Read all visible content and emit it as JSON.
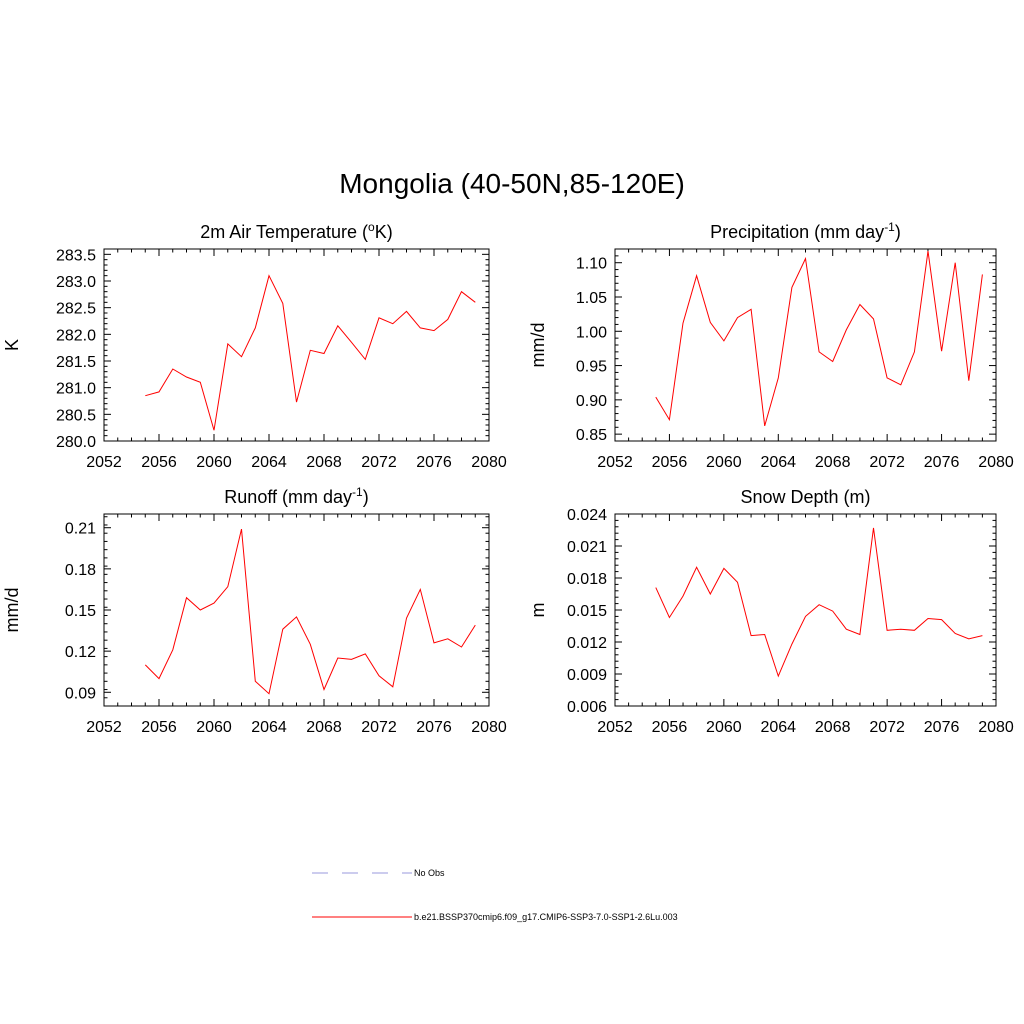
{
  "title": "Mongolia (40-50N,85-120E)",
  "legend": [
    {
      "label": "No Obs",
      "style": "dashed",
      "color": "#9999dd"
    },
    {
      "label": "b.e21.BSSP370cmip6.f09_g17.CMIP6-SSP3-7.0-SSP1-2.6Lu.003",
      "style": "solid",
      "color": "#ff0000"
    }
  ],
  "chart_data": [
    {
      "type": "line",
      "title": "2m Air Temperature (",
      "title_sup": "o",
      "title_after": "K)",
      "ylabel": "K",
      "xlim": [
        2052,
        2080
      ],
      "xticks": [
        2052,
        2056,
        2060,
        2064,
        2068,
        2072,
        2076,
        2080
      ],
      "xtick_labels": [
        "2052",
        "2056",
        "2060",
        "2064",
        "2068",
        "2072",
        "2076",
        "2080"
      ],
      "ylim": [
        280.0,
        283.6
      ],
      "yticks": [
        280.0,
        280.5,
        281.0,
        281.5,
        282.0,
        282.5,
        283.0,
        283.5
      ],
      "ytick_labels": [
        "280.0",
        "280.5",
        "281.0",
        "281.5",
        "282.0",
        "282.5",
        "283.0",
        "283.5"
      ],
      "color": "#ff0000",
      "x": [
        2055,
        2056,
        2057,
        2058,
        2059,
        2060,
        2061,
        2062,
        2063,
        2064,
        2065,
        2066,
        2067,
        2068,
        2069,
        2070,
        2071,
        2072,
        2073,
        2074,
        2075,
        2076,
        2077,
        2078,
        2079
      ],
      "y": [
        280.85,
        280.92,
        281.35,
        281.2,
        281.1,
        280.2,
        281.82,
        281.58,
        282.12,
        283.1,
        282.58,
        280.73,
        281.7,
        281.64,
        282.16,
        281.85,
        281.53,
        282.31,
        282.2,
        282.43,
        282.12,
        282.07,
        282.28,
        282.8,
        282.6
      ]
    },
    {
      "type": "line",
      "title": "Precipitation (mm day",
      "title_sup": "-1",
      "title_after": ")",
      "ylabel": "mm/d",
      "xlim": [
        2052,
        2080
      ],
      "xticks": [
        2052,
        2056,
        2060,
        2064,
        2068,
        2072,
        2076,
        2080
      ],
      "xtick_labels": [
        "2052",
        "2056",
        "2060",
        "2064",
        "2068",
        "2072",
        "2076",
        "2080"
      ],
      "ylim": [
        0.84,
        1.12
      ],
      "yticks": [
        0.85,
        0.9,
        0.95,
        1.0,
        1.05,
        1.1
      ],
      "ytick_labels": [
        "0.85",
        "0.90",
        "0.95",
        "1.00",
        "1.05",
        "1.10"
      ],
      "color": "#ff0000",
      "x": [
        2055,
        2056,
        2057,
        2058,
        2059,
        2060,
        2061,
        2062,
        2063,
        2064,
        2065,
        2066,
        2067,
        2068,
        2069,
        2070,
        2071,
        2072,
        2073,
        2074,
        2075,
        2076,
        2077,
        2078,
        2079
      ],
      "y": [
        0.904,
        0.871,
        1.012,
        1.081,
        1.013,
        0.986,
        1.02,
        1.032,
        0.862,
        0.932,
        1.064,
        1.106,
        0.97,
        0.956,
        1.002,
        1.039,
        1.018,
        0.932,
        0.922,
        0.97,
        1.117,
        0.971,
        1.1,
        0.928,
        1.083
      ]
    },
    {
      "type": "line",
      "title": "Runoff (mm day",
      "title_sup": "-1",
      "title_after": ")",
      "ylabel": "mm/d",
      "xlim": [
        2052,
        2080
      ],
      "xticks": [
        2052,
        2056,
        2060,
        2064,
        2068,
        2072,
        2076,
        2080
      ],
      "xtick_labels": [
        "2052",
        "2056",
        "2060",
        "2064",
        "2068",
        "2072",
        "2076",
        "2080"
      ],
      "ylim": [
        0.08,
        0.22
      ],
      "yticks": [
        0.09,
        0.12,
        0.15,
        0.18,
        0.21
      ],
      "ytick_labels": [
        "0.09",
        "0.12",
        "0.15",
        "0.18",
        "0.21"
      ],
      "color": "#ff0000",
      "x": [
        2055,
        2056,
        2057,
        2058,
        2059,
        2060,
        2061,
        2062,
        2063,
        2064,
        2065,
        2066,
        2067,
        2068,
        2069,
        2070,
        2071,
        2072,
        2073,
        2074,
        2075,
        2076,
        2077,
        2078,
        2079
      ],
      "y": [
        0.11,
        0.1,
        0.121,
        0.159,
        0.15,
        0.155,
        0.167,
        0.209,
        0.098,
        0.089,
        0.136,
        0.145,
        0.125,
        0.092,
        0.115,
        0.114,
        0.118,
        0.102,
        0.094,
        0.144,
        0.165,
        0.126,
        0.129,
        0.123,
        0.139
      ]
    },
    {
      "type": "line",
      "title": "Snow Depth (m)",
      "title_sup": "",
      "title_after": "",
      "ylabel": "m",
      "xlim": [
        2052,
        2080
      ],
      "xticks": [
        2052,
        2056,
        2060,
        2064,
        2068,
        2072,
        2076,
        2080
      ],
      "xtick_labels": [
        "2052",
        "2056",
        "2060",
        "2064",
        "2068",
        "2072",
        "2076",
        "2080"
      ],
      "ylim": [
        0.006,
        0.024
      ],
      "yticks": [
        0.006,
        0.009,
        0.012,
        0.015,
        0.018,
        0.021,
        0.024
      ],
      "ytick_labels": [
        "0.006",
        "0.009",
        "0.012",
        "0.015",
        "0.018",
        "0.021",
        "0.024"
      ],
      "color": "#ff0000",
      "x": [
        2055,
        2056,
        2057,
        2058,
        2059,
        2060,
        2061,
        2062,
        2063,
        2064,
        2065,
        2066,
        2067,
        2068,
        2069,
        2070,
        2071,
        2072,
        2073,
        2074,
        2075,
        2076,
        2077,
        2078,
        2079
      ],
      "y": [
        0.0171,
        0.0143,
        0.0163,
        0.019,
        0.0165,
        0.0189,
        0.0176,
        0.0126,
        0.0127,
        0.0088,
        0.0118,
        0.0144,
        0.0155,
        0.0149,
        0.0132,
        0.0127,
        0.0227,
        0.0131,
        0.0132,
        0.0131,
        0.0142,
        0.0141,
        0.0128,
        0.0123,
        0.0126
      ]
    }
  ]
}
